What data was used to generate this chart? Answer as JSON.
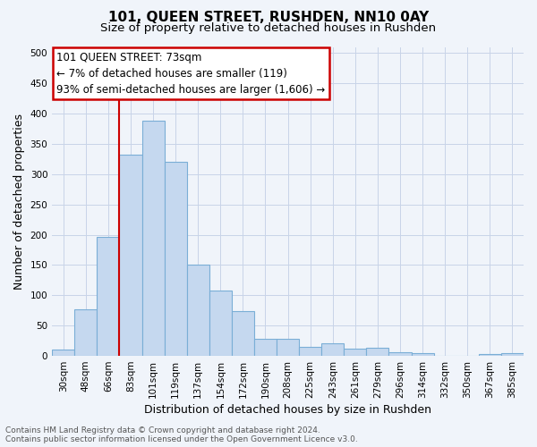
{
  "title": "101, QUEEN STREET, RUSHDEN, NN10 0AY",
  "subtitle": "Size of property relative to detached houses in Rushden",
  "xlabel": "Distribution of detached houses by size in Rushden",
  "ylabel": "Number of detached properties",
  "footer_line1": "Contains HM Land Registry data © Crown copyright and database right 2024.",
  "footer_line2": "Contains public sector information licensed under the Open Government Licence v3.0.",
  "categories": [
    "30sqm",
    "48sqm",
    "66sqm",
    "83sqm",
    "101sqm",
    "119sqm",
    "137sqm",
    "154sqm",
    "172sqm",
    "190sqm",
    "208sqm",
    "225sqm",
    "243sqm",
    "261sqm",
    "279sqm",
    "296sqm",
    "314sqm",
    "332sqm",
    "350sqm",
    "367sqm",
    "385sqm"
  ],
  "values": [
    10,
    77,
    197,
    332,
    388,
    321,
    151,
    108,
    74,
    28,
    28,
    15,
    21,
    12,
    14,
    6,
    4,
    0,
    0,
    3,
    4
  ],
  "bar_color": "#c5d8ef",
  "bar_edge_color": "#7aaed6",
  "background_color": "#f0f4fa",
  "plot_bg_color": "#f0f4fa",
  "ylim": [
    0,
    510
  ],
  "yticks": [
    0,
    50,
    100,
    150,
    200,
    250,
    300,
    350,
    400,
    450,
    500
  ],
  "marker_line_color": "#cc0000",
  "grid_color": "#c8d4e8",
  "annotation_title": "101 QUEEN STREET: 73sqm",
  "annotation_line1": "← 7% of detached houses are smaller (119)",
  "annotation_line2": "93% of semi-detached houses are larger (1,606) →",
  "annotation_box_color": "#ffffff",
  "annotation_border_color": "#cc0000",
  "title_fontsize": 11,
  "subtitle_fontsize": 9.5,
  "xlabel_fontsize": 9,
  "ylabel_fontsize": 9,
  "tick_fontsize": 7.5,
  "annotation_fontsize": 8.5,
  "footer_fontsize": 6.5
}
